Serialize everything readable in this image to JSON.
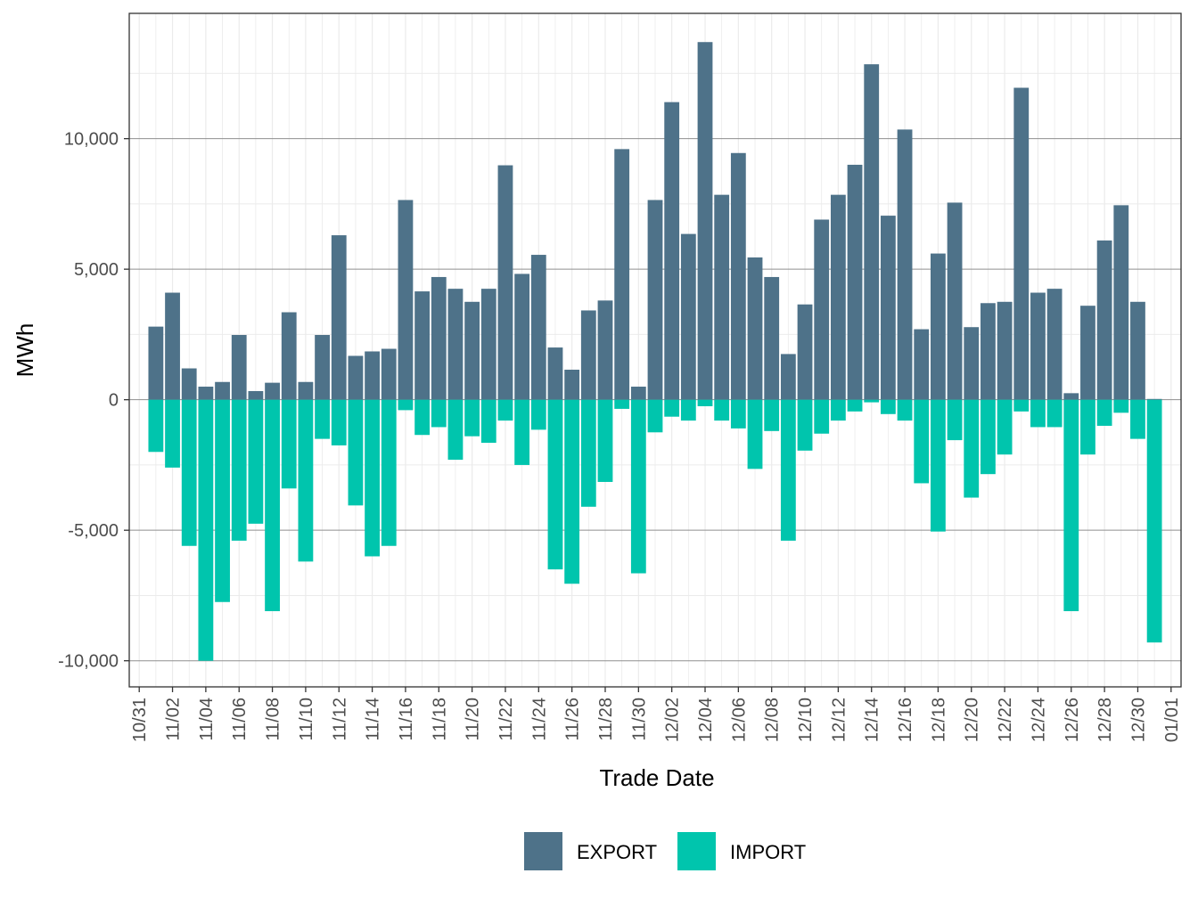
{
  "chart_data": {
    "type": "bar",
    "xlabel": "Trade Date",
    "ylabel": "MWh",
    "ylim": [
      -11000,
      14800
    ],
    "yticks": [
      -10000,
      -5000,
      0,
      5000,
      10000
    ],
    "ytick_labels": [
      "-10,000",
      "-5,000",
      "0",
      "5,000",
      "10,000"
    ],
    "xtick_labels": [
      "10/31",
      "11/02",
      "11/04",
      "11/06",
      "11/08",
      "11/10",
      "11/12",
      "11/14",
      "11/16",
      "11/18",
      "11/20",
      "11/22",
      "11/24",
      "11/26",
      "11/28",
      "11/30",
      "12/02",
      "12/04",
      "12/06",
      "12/08",
      "12/10",
      "12/12",
      "12/14",
      "12/16",
      "12/18",
      "12/20",
      "12/22",
      "12/24",
      "12/26",
      "12/28",
      "12/30",
      "01/01"
    ],
    "grid": true,
    "legend_position": "bottom",
    "categories": [
      "11/01",
      "11/02",
      "11/03",
      "11/04",
      "11/05",
      "11/06",
      "11/07",
      "11/08",
      "11/09",
      "11/10",
      "11/11",
      "11/12",
      "11/13",
      "11/14",
      "11/15",
      "11/16",
      "11/17",
      "11/18",
      "11/19",
      "11/20",
      "11/21",
      "11/22",
      "11/23",
      "11/24",
      "11/25",
      "11/26",
      "11/27",
      "11/28",
      "11/29",
      "11/30",
      "12/01",
      "12/02",
      "12/03",
      "12/04",
      "12/05",
      "12/06",
      "12/07",
      "12/08",
      "12/09",
      "12/10",
      "12/11",
      "12/12",
      "12/13",
      "12/14",
      "12/15",
      "12/16",
      "12/17",
      "12/18",
      "12/19",
      "12/20",
      "12/21",
      "12/22",
      "12/23",
      "12/24",
      "12/25",
      "12/26",
      "12/27",
      "12/28",
      "12/29",
      "12/30",
      "12/31"
    ],
    "series": [
      {
        "name": "EXPORT",
        "color": "#4e7289",
        "values": [
          2800,
          4100,
          1200,
          500,
          680,
          2480,
          330,
          650,
          3350,
          680,
          2480,
          6300,
          1680,
          1850,
          1950,
          7650,
          4150,
          4700,
          4250,
          3750,
          4250,
          8980,
          4820,
          5550,
          2000,
          1150,
          3420,
          3800,
          9600,
          500,
          7650,
          11400,
          6350,
          13700,
          7850,
          9450,
          5450,
          4700,
          1750,
          3650,
          6900,
          7850,
          9000,
          12850,
          7050,
          10350,
          2700,
          5600,
          7550,
          2780,
          3700,
          3750,
          11950,
          4100,
          4250,
          250,
          3600,
          6100,
          7450,
          3750,
          30
        ]
      },
      {
        "name": "IMPORT",
        "color": "#00c5ad",
        "values": [
          -2000,
          -2600,
          -5600,
          -10000,
          -7750,
          -5400,
          -4750,
          -8100,
          -3400,
          -6200,
          -1500,
          -1750,
          -4050,
          -6000,
          -5600,
          -400,
          -1350,
          -1050,
          -2300,
          -1400,
          -1650,
          -800,
          -2500,
          -1150,
          -6500,
          -7050,
          -4100,
          -3150,
          -350,
          -6650,
          -1250,
          -650,
          -800,
          -250,
          -800,
          -1100,
          -2650,
          -1200,
          -5400,
          -1950,
          -1300,
          -800,
          -450,
          -100,
          -550,
          -800,
          -3200,
          -5050,
          -1550,
          -3750,
          -2850,
          -2100,
          -450,
          -1050,
          -1050,
          -8100,
          -2100,
          -1000,
          -500,
          -1500,
          -9300
        ]
      }
    ]
  }
}
